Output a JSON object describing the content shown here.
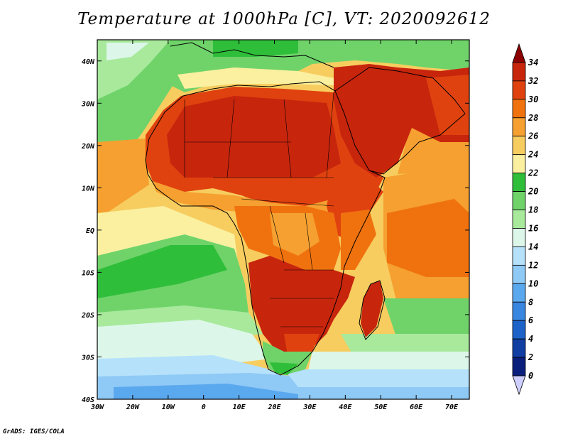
{
  "title": "Temperature at 1000hPa [C], VT: 2020092612",
  "credit": "GrADS: IGES/COLA",
  "map": {
    "lon_range": [
      -30,
      75
    ],
    "lat_range": [
      -40,
      45
    ],
    "lon_labels": [
      "30W",
      "20W",
      "10W",
      "0",
      "10E",
      "20E",
      "30E",
      "40E",
      "50E",
      "60E",
      "70E"
    ],
    "lat_labels": [
      "40N",
      "30N",
      "20N",
      "10N",
      "EQ",
      "10S",
      "20S",
      "30S",
      "40S"
    ]
  },
  "colorbar": {
    "labels": [
      "34",
      "32",
      "30",
      "28",
      "26",
      "24",
      "22",
      "20",
      "18",
      "16",
      "14",
      "12",
      "10",
      "8",
      "6",
      "4",
      "2",
      "0"
    ],
    "colors": [
      "#8b0000",
      "#c8250d",
      "#e0420f",
      "#f0720f",
      "#f5a030",
      "#f7cd5f",
      "#fbf0a0",
      "#2fbe3a",
      "#6fd36a",
      "#a8e99c",
      "#dcf7e9",
      "#b5e1fb",
      "#8fc9f5",
      "#5aa8ee",
      "#3986e0",
      "#1d62c8",
      "#113ea3",
      "#0a1f7c",
      "#cfcfff"
    ]
  },
  "regions": {
    "warmest": "North Africa, Arabian Peninsula, southern Africa interior (32-34)",
    "ocean_cold": "South Atlantic south of 30S (8-16)"
  }
}
